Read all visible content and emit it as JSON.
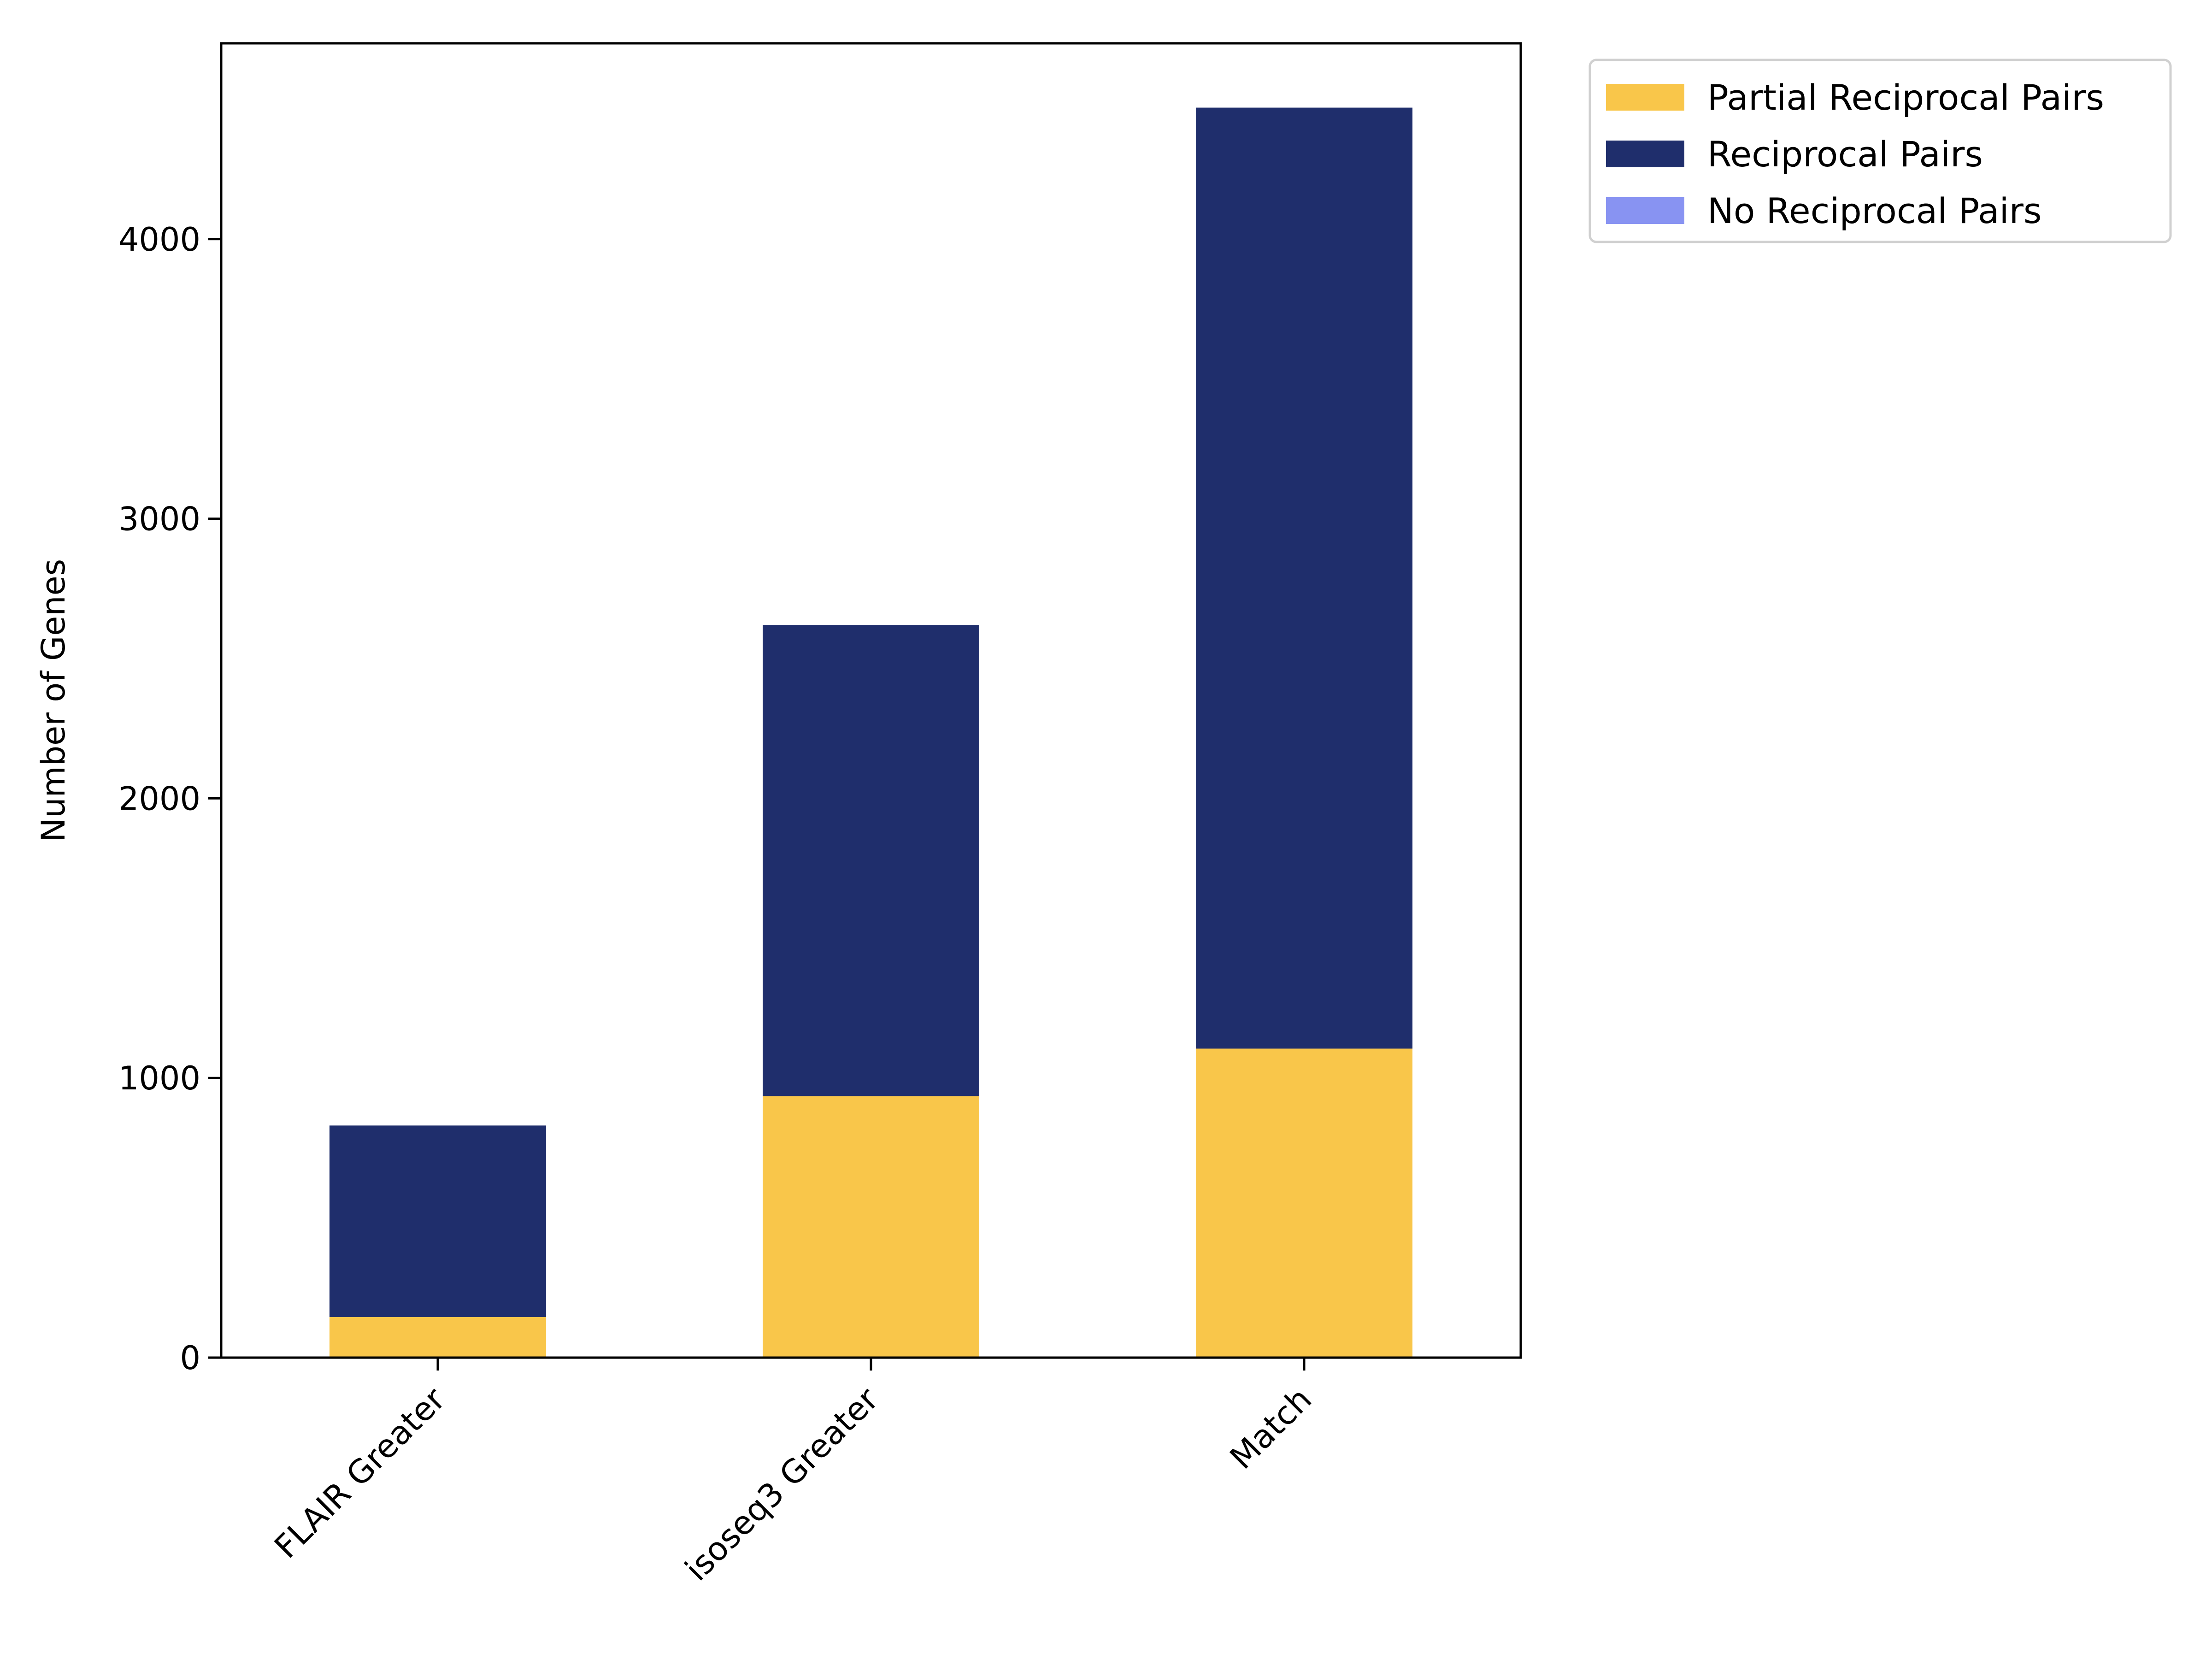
{
  "chart_data": {
    "type": "bar",
    "stacked": true,
    "categories": [
      "FLAIR Greater",
      "isoseq3 Greater",
      "Match"
    ],
    "series": [
      {
        "name": "Partial Reciprocal Pairs",
        "values": [
          145,
          935,
          1105
        ],
        "color": "#f9c64a"
      },
      {
        "name": "Reciprocal Pairs",
        "values": [
          685,
          1685,
          3365
        ],
        "color": "#1f2e6c"
      },
      {
        "name": "No Reciprocal Pairs",
        "values": [
          0,
          0,
          0
        ],
        "color": "#8893f2"
      }
    ],
    "xlabel": "",
    "ylabel": "Number of Genes",
    "ylim": [
      0,
      4700
    ],
    "yticks": [
      0,
      1000,
      2000,
      3000,
      4000
    ],
    "grid": false,
    "legend_position": "outside-top-right"
  }
}
